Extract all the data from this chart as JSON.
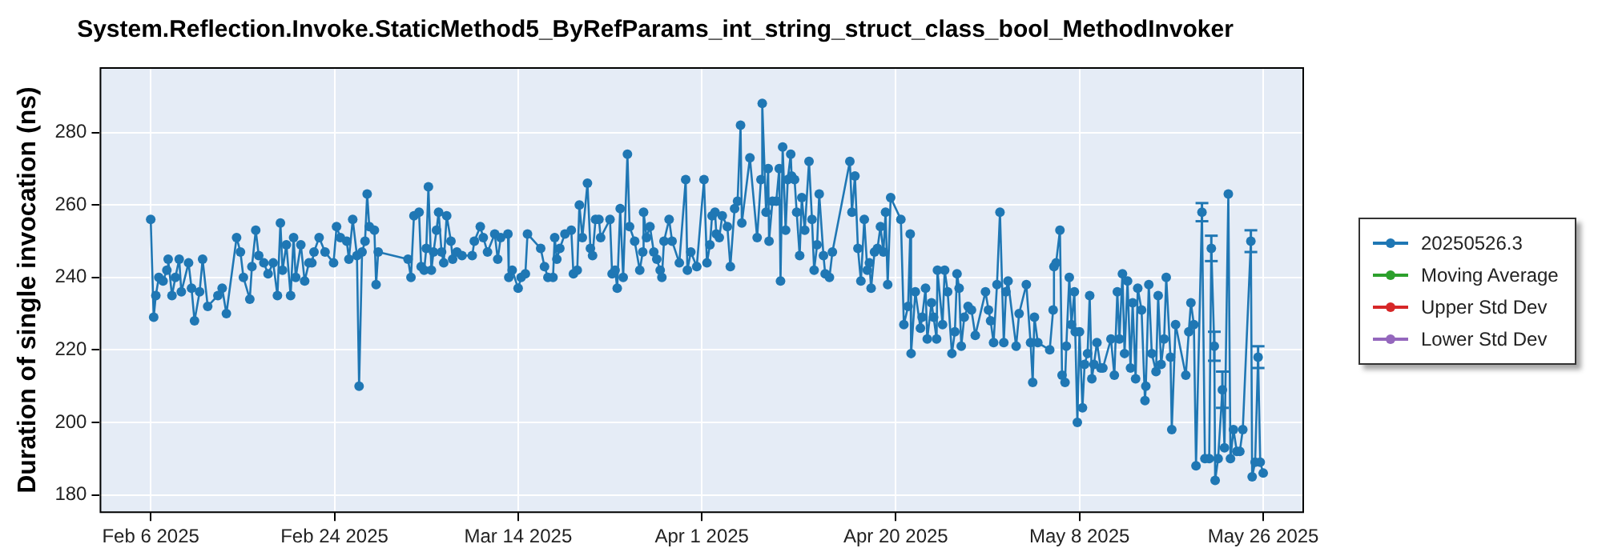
{
  "chart_data": {
    "type": "line",
    "title": "System.Reflection.Invoke.StaticMethod5_ByRefParams_int_string_struct_class_bool_MethodInvoker",
    "ylabel": "Duration of single invocation (ns)",
    "x": [
      "2025-02-06T00:00",
      "2025-02-06T07:00",
      "2025-02-06T12:00",
      "2025-02-06T19:00",
      "2025-02-07T05:00",
      "2025-02-07T14:00",
      "2025-02-07T17:00",
      "2025-02-08T02:00",
      "2025-02-08T10:00",
      "2025-02-08T19:00",
      "2025-02-09T00:00",
      "2025-02-09T17:00",
      "2025-02-10T00:00",
      "2025-02-10T07:00",
      "2025-02-10T19:00",
      "2025-02-11T02:00",
      "2025-02-11T14:00",
      "2025-02-12T14:00",
      "2025-02-13T00:00",
      "2025-02-13T10:00",
      "2025-02-14T10:00",
      "2025-02-14T19:00",
      "2025-02-15T02:00",
      "2025-02-15T17:00",
      "2025-02-15T22:00",
      "2025-02-16T07:00",
      "2025-02-16T14:00",
      "2025-02-17T02:00",
      "2025-02-17T12:00",
      "2025-02-18T00:00",
      "2025-02-18T10:00",
      "2025-02-18T17:00",
      "2025-02-18T22:00",
      "2025-02-19T07:00",
      "2025-02-19T17:00",
      "2025-02-20T00:00",
      "2025-02-20T05:00",
      "2025-02-20T17:00",
      "2025-02-21T02:00",
      "2025-02-21T12:00",
      "2025-02-21T19:00",
      "2025-02-22T00:00",
      "2025-02-22T12:00",
      "2025-02-23T02:00",
      "2025-02-23T22:00",
      "2025-02-24T05:00",
      "2025-02-24T14:00",
      "2025-02-25T05:00",
      "2025-02-25T10:00",
      "2025-02-25T19:00",
      "2025-02-26T05:00",
      "2025-02-26T10:00",
      "2025-02-26T17:00",
      "2025-02-27T00:00",
      "2025-02-27T05:00",
      "2025-02-27T10:00",
      "2025-02-27T22:00",
      "2025-02-28T02:00",
      "2025-02-28T07:00",
      "2025-03-03T05:00",
      "2025-03-03T12:00",
      "2025-03-03T19:00",
      "2025-03-04T07:00",
      "2025-03-04T12:00",
      "2025-03-04T19:00",
      "2025-03-05T00:00",
      "2025-03-05T05:00",
      "2025-03-05T12:00",
      "2025-03-05T17:00",
      "2025-03-06T00:00",
      "2025-03-06T05:00",
      "2025-03-06T12:00",
      "2025-03-06T17:00",
      "2025-03-07T00:00",
      "2025-03-07T10:00",
      "2025-03-07T14:00",
      "2025-03-08T00:00",
      "2025-03-08T12:00",
      "2025-03-09T12:00",
      "2025-03-09T17:00",
      "2025-03-10T07:00",
      "2025-03-10T14:00",
      "2025-03-11T00:00",
      "2025-03-11T17:00",
      "2025-03-12T00:00",
      "2025-03-12T07:00",
      "2025-03-13T00:00",
      "2025-03-13T02:00",
      "2025-03-13T10:00",
      "2025-03-14T00:00",
      "2025-03-14T07:00",
      "2025-03-14T17:00",
      "2025-03-14T22:00",
      "2025-03-16T05:00",
      "2025-03-16T14:00",
      "2025-03-16T22:00",
      "2025-03-17T10:00",
      "2025-03-17T14:00",
      "2025-03-17T19:00",
      "2025-03-18T02:00",
      "2025-03-18T14:00",
      "2025-03-19T05:00",
      "2025-03-19T10:00",
      "2025-03-19T19:00",
      "2025-03-20T00:00",
      "2025-03-20T07:00",
      "2025-03-20T19:00",
      "2025-03-21T02:00",
      "2025-03-21T07:00",
      "2025-03-21T14:00",
      "2025-03-21T22:00",
      "2025-03-22T02:00",
      "2025-03-23T00:00",
      "2025-03-23T05:00",
      "2025-03-23T12:00",
      "2025-03-23T17:00",
      "2025-03-24T00:00",
      "2025-03-24T07:00",
      "2025-03-24T17:00",
      "2025-03-24T22:00",
      "2025-03-25T10:00",
      "2025-03-25T22:00",
      "2025-03-26T05:00",
      "2025-03-26T07:00",
      "2025-03-26T14:00",
      "2025-03-26T22:00",
      "2025-03-27T07:00",
      "2025-03-27T14:00",
      "2025-03-27T22:00",
      "2025-03-28T02:00",
      "2025-03-28T07:00",
      "2025-03-28T19:00",
      "2025-03-29T02:00",
      "2025-03-29T19:00",
      "2025-03-30T10:00",
      "2025-03-30T14:00",
      "2025-03-30T22:00",
      "2025-03-31T12:00",
      "2025-04-01T05:00",
      "2025-04-01T12:00",
      "2025-04-01T19:00",
      "2025-04-02T00:00",
      "2025-04-02T07:00",
      "2025-04-02T10:00",
      "2025-04-02T17:00",
      "2025-04-03T00:00",
      "2025-04-03T12:00",
      "2025-04-03T19:00",
      "2025-04-04T05:00",
      "2025-04-04T12:00",
      "2025-04-04T19:00",
      "2025-04-04T22:00",
      "2025-04-05T17:00",
      "2025-04-06T10:00",
      "2025-04-06T19:00",
      "2025-04-06T22:00",
      "2025-04-07T07:00",
      "2025-04-07T12:00",
      "2025-04-07T14:00",
      "2025-04-07T22:00",
      "2025-04-08T07:00",
      "2025-04-08T14:00",
      "2025-04-08T17:00",
      "2025-04-08T22:00",
      "2025-04-09T05:00",
      "2025-04-09T10:00",
      "2025-04-09T17:00",
      "2025-04-09T19:00",
      "2025-04-10T02:00",
      "2025-04-10T07:00",
      "2025-04-10T14:00",
      "2025-04-10T19:00",
      "2025-04-11T02:00",
      "2025-04-11T12:00",
      "2025-04-11T19:00",
      "2025-04-12T00:00",
      "2025-04-12T07:00",
      "2025-04-12T12:00",
      "2025-04-12T22:00",
      "2025-04-13T02:00",
      "2025-04-13T12:00",
      "2025-04-13T19:00",
      "2025-04-15T12:00",
      "2025-04-15T17:00",
      "2025-04-16T00:00",
      "2025-04-16T07:00",
      "2025-04-16T14:00",
      "2025-04-16T22:00",
      "2025-04-17T05:00",
      "2025-04-17T10:00",
      "2025-04-17T14:00",
      "2025-04-17T22:00",
      "2025-04-18T05:00",
      "2025-04-18T12:00",
      "2025-04-18T19:00",
      "2025-04-19T00:00",
      "2025-04-19T05:00",
      "2025-04-19T12:00",
      "2025-04-20T12:00",
      "2025-04-20T19:00",
      "2025-04-21T05:00",
      "2025-04-21T10:00",
      "2025-04-21T12:00",
      "2025-04-21T22:00",
      "2025-04-22T10:00",
      "2025-04-22T14:00",
      "2025-04-22T22:00",
      "2025-04-23T02:00",
      "2025-04-23T12:00",
      "2025-04-23T17:00",
      "2025-04-24T00:00",
      "2025-04-24T02:00",
      "2025-04-24T14:00",
      "2025-04-24T19:00",
      "2025-04-25T02:00",
      "2025-04-25T12:00",
      "2025-04-25T19:00",
      "2025-04-26T00:00",
      "2025-04-26T05:00",
      "2025-04-26T10:00",
      "2025-04-26T17:00",
      "2025-04-27T02:00",
      "2025-04-27T10:00",
      "2025-04-27T19:00",
      "2025-04-28T19:00",
      "2025-04-29T02:00",
      "2025-04-29T07:00",
      "2025-04-29T14:00",
      "2025-04-29T22:00",
      "2025-04-30T05:00",
      "2025-04-30T14:00",
      "2025-04-30T19:00",
      "2025-05-01T00:00",
      "2025-05-01T19:00",
      "2025-05-02T02:00",
      "2025-05-02T19:00",
      "2025-05-03T05:00",
      "2025-05-03T10:00",
      "2025-05-03T14:00",
      "2025-05-03T22:00",
      "2025-05-05T02:00",
      "2025-05-05T10:00",
      "2025-05-05T12:00",
      "2025-05-05T17:00",
      "2025-05-06T02:00",
      "2025-05-06T07:00",
      "2025-05-06T14:00",
      "2025-05-06T17:00",
      "2025-05-07T00:00",
      "2025-05-07T05:00",
      "2025-05-07T12:00",
      "2025-05-07T14:00",
      "2025-05-07T19:00",
      "2025-05-08T00:00",
      "2025-05-08T07:00",
      "2025-05-08T12:00",
      "2025-05-08T19:00",
      "2025-05-09T00:00",
      "2025-05-09T05:00",
      "2025-05-09T10:00",
      "2025-05-09T17:00",
      "2025-05-10T02:00",
      "2025-05-10T07:00",
      "2025-05-11T02:00",
      "2025-05-11T10:00",
      "2025-05-11T17:00",
      "2025-05-11T22:00",
      "2025-05-12T05:00",
      "2025-05-12T10:00",
      "2025-05-12T17:00",
      "2025-05-13T00:00",
      "2025-05-13T05:00",
      "2025-05-13T12:00",
      "2025-05-13T17:00",
      "2025-05-14T02:00",
      "2025-05-14T10:00",
      "2025-05-14T12:00",
      "2025-05-14T19:00",
      "2025-05-15T02:00",
      "2025-05-15T12:00",
      "2025-05-15T17:00",
      "2025-05-16T00:00",
      "2025-05-16T07:00",
      "2025-05-16T12:00",
      "2025-05-16T22:00",
      "2025-05-17T01:00",
      "2025-05-17T10:00",
      "2025-05-18T10:00",
      "2025-05-18T17:00",
      "2025-05-18T22:00",
      "2025-05-19T05:00",
      "2025-05-19T10:00",
      "2025-05-20T00:00",
      "2025-05-20T07:00",
      "2025-05-20T17:00",
      "2025-05-20T22:00",
      "2025-05-21T05:00",
      "2025-05-21T07:00",
      "2025-05-21T14:00",
      "2025-05-22T00:00",
      "2025-05-22T05:00",
      "2025-05-22T14:00",
      "2025-05-22T19:00",
      "2025-05-23T02:00",
      "2025-05-23T10:00",
      "2025-05-23T17:00",
      "2025-05-24T00:00",
      "2025-05-24T19:00",
      "2025-05-24T22:00",
      "2025-05-25T05:00",
      "2025-05-25T12:00",
      "2025-05-25T17:00",
      "2025-05-26T00:00"
    ],
    "series": [
      {
        "name": "20250526.3",
        "color": "#1f77b4",
        "values": [
          256,
          229,
          235,
          240,
          239,
          242,
          245,
          235,
          240,
          245,
          236,
          244,
          237,
          228,
          236,
          245,
          232,
          235,
          237,
          230,
          251,
          247,
          240,
          234,
          243,
          253,
          246,
          244,
          241,
          244,
          235,
          255,
          242,
          249,
          235,
          251,
          240,
          249,
          239,
          244,
          244,
          247,
          251,
          247,
          244,
          254,
          251,
          250,
          245,
          256,
          246,
          210,
          247,
          250,
          263,
          254,
          253,
          238,
          247,
          245,
          240,
          257,
          258,
          243,
          242,
          248,
          265,
          242,
          247,
          253,
          258,
          247,
          244,
          257,
          250,
          245,
          247,
          246,
          246,
          250,
          254,
          251,
          247,
          252,
          245,
          251,
          252,
          240,
          242,
          237,
          240,
          241,
          252,
          248,
          243,
          240,
          240,
          251,
          245,
          248,
          252,
          253,
          241,
          242,
          260,
          251,
          266,
          248,
          246,
          256,
          256,
          251,
          256,
          241,
          242,
          237,
          259,
          240,
          274,
          254,
          250,
          242,
          247,
          258,
          251,
          254,
          247,
          245,
          242,
          240,
          250,
          256,
          250,
          244,
          267,
          242,
          247,
          243,
          267,
          244,
          249,
          257,
          258,
          252,
          251,
          257,
          254,
          243,
          259,
          261,
          282,
          255,
          273,
          251,
          267,
          288,
          258,
          270,
          250,
          261,
          261,
          270,
          239,
          276,
          253,
          267,
          274,
          268,
          267,
          258,
          246,
          262,
          253,
          272,
          256,
          242,
          249,
          263,
          246,
          241,
          240,
          247,
          272,
          258,
          268,
          248,
          239,
          256,
          242,
          244,
          237,
          247,
          248,
          254,
          247,
          258,
          238,
          262,
          256,
          227,
          232,
          252,
          219,
          236,
          226,
          229,
          237,
          223,
          233,
          229,
          223,
          242,
          227,
          242,
          236,
          219,
          225,
          241,
          237,
          221,
          229,
          232,
          231,
          224,
          236,
          231,
          228,
          222,
          238,
          258,
          222,
          236,
          239,
          221,
          230,
          238,
          222,
          211,
          229,
          222,
          220,
          231,
          243,
          244,
          253,
          213,
          211,
          221,
          240,
          227,
          236,
          225,
          200,
          225,
          204,
          216,
          219,
          235,
          212,
          216,
          222,
          215,
          215,
          223,
          213,
          236,
          223,
          241,
          219,
          239,
          215,
          233,
          212,
          237,
          231,
          206,
          210,
          238,
          219,
          214,
          235,
          216,
          223,
          240,
          218,
          198,
          227,
          213,
          225,
          233,
          227,
          188,
          258,
          190,
          190,
          248,
          221,
          184,
          190,
          209,
          193,
          263,
          190,
          198,
          192,
          192,
          198,
          250,
          185,
          189,
          218,
          189,
          186
        ],
        "errors": [
          null,
          null,
          null,
          null,
          null,
          null,
          null,
          null,
          null,
          null,
          null,
          null,
          null,
          null,
          null,
          null,
          null,
          null,
          null,
          null,
          null,
          null,
          null,
          null,
          null,
          null,
          null,
          null,
          null,
          null,
          null,
          null,
          null,
          null,
          null,
          null,
          null,
          null,
          null,
          null,
          null,
          null,
          null,
          null,
          null,
          null,
          null,
          null,
          null,
          null,
          null,
          null,
          null,
          null,
          null,
          null,
          null,
          null,
          null,
          null,
          null,
          null,
          null,
          null,
          null,
          null,
          null,
          null,
          null,
          null,
          null,
          null,
          null,
          null,
          null,
          null,
          null,
          null,
          null,
          null,
          null,
          null,
          null,
          null,
          null,
          null,
          null,
          null,
          null,
          null,
          null,
          null,
          null,
          null,
          null,
          null,
          null,
          null,
          null,
          null,
          null,
          null,
          null,
          null,
          null,
          null,
          null,
          null,
          null,
          null,
          null,
          null,
          null,
          null,
          null,
          null,
          null,
          null,
          null,
          null,
          null,
          null,
          null,
          null,
          null,
          null,
          null,
          null,
          null,
          null,
          null,
          null,
          null,
          null,
          null,
          null,
          null,
          null,
          null,
          null,
          null,
          null,
          null,
          null,
          null,
          null,
          null,
          null,
          null,
          null,
          null,
          null,
          null,
          null,
          null,
          null,
          null,
          null,
          null,
          null,
          null,
          null,
          null,
          null,
          null,
          null,
          null,
          null,
          null,
          null,
          null,
          null,
          null,
          null,
          null,
          null,
          null,
          null,
          null,
          null,
          null,
          null,
          null,
          null,
          null,
          null,
          null,
          null,
          null,
          null,
          null,
          null,
          null,
          null,
          null,
          null,
          null,
          null,
          null,
          null,
          null,
          null,
          null,
          null,
          null,
          null,
          null,
          null,
          null,
          null,
          null,
          null,
          null,
          null,
          null,
          null,
          null,
          null,
          null,
          null,
          null,
          null,
          null,
          null,
          null,
          null,
          null,
          null,
          null,
          null,
          null,
          null,
          null,
          null,
          null,
          null,
          null,
          null,
          null,
          null,
          null,
          null,
          null,
          null,
          null,
          null,
          null,
          null,
          null,
          null,
          null,
          null,
          null,
          null,
          null,
          null,
          null,
          null,
          null,
          null,
          null,
          null,
          null,
          null,
          null,
          null,
          null,
          null,
          null,
          null,
          null,
          null,
          null,
          null,
          null,
          null,
          null,
          null,
          null,
          null,
          null,
          null,
          null,
          null,
          null,
          null,
          null,
          null,
          null,
          null,
          null,
          null,
          2.5,
          null,
          null,
          3.5,
          4,
          null,
          null,
          5,
          null,
          null,
          null,
          null,
          null,
          null,
          null,
          3,
          null,
          null,
          3,
          null,
          null
        ]
      },
      {
        "name": "Moving Average",
        "color": "#2ca02c",
        "values": [
          null,
          null,
          null,
          null,
          null,
          null,
          null,
          null,
          null,
          null,
          null,
          null,
          null,
          null,
          null,
          null,
          null,
          null,
          null,
          null,
          null,
          null,
          null,
          null,
          null,
          null,
          null,
          null,
          null,
          null,
          null,
          null,
          null,
          null,
          null,
          null,
          null,
          null,
          null,
          null,
          null,
          null,
          null,
          null,
          null,
          null,
          null,
          null,
          null,
          null,
          null,
          null,
          null,
          null,
          null,
          null,
          null,
          null,
          null,
          null,
          null,
          null,
          null,
          null,
          null,
          null,
          null,
          null,
          null,
          null,
          null,
          null,
          null,
          null,
          null,
          null,
          null,
          null,
          null,
          null,
          null,
          null,
          null,
          null,
          null,
          null,
          null,
          null,
          null,
          null,
          null,
          null,
          null,
          null,
          null,
          null,
          null,
          null,
          null,
          null,
          null,
          null,
          null,
          null,
          null,
          null,
          null,
          null,
          null,
          null,
          null,
          null,
          null,
          null,
          null,
          null,
          null,
          null,
          null,
          null,
          null,
          null,
          null,
          null,
          null,
          null,
          null,
          null,
          null,
          null,
          null,
          null,
          null,
          null,
          null,
          null,
          null,
          null,
          null,
          null,
          null,
          null,
          null,
          null,
          null,
          null,
          null,
          null,
          null,
          null,
          null,
          null,
          null,
          null,
          null,
          null,
          null,
          null,
          null,
          null,
          null,
          null,
          null,
          null,
          null,
          null,
          null,
          null,
          null,
          null,
          null,
          null,
          null,
          null,
          null,
          null,
          null,
          null,
          null,
          null,
          null,
          null,
          null,
          null,
          null,
          null,
          null,
          null,
          null,
          null,
          null,
          null,
          null,
          null,
          null,
          null,
          null,
          null,
          null,
          null,
          null,
          null,
          null,
          null,
          null,
          null,
          null,
          null,
          null,
          null,
          null,
          null,
          null,
          null,
          null,
          null,
          null,
          null,
          null,
          null,
          null,
          null,
          null,
          null,
          null,
          null,
          null,
          null,
          null,
          null,
          null,
          null,
          null,
          null,
          null,
          null,
          null,
          null,
          null,
          null,
          null,
          null,
          null,
          null,
          null,
          null,
          null,
          null,
          null,
          null,
          null,
          null,
          null,
          null,
          null,
          null,
          null,
          null,
          null,
          null,
          null,
          null,
          null,
          null,
          null,
          null,
          null,
          null,
          null,
          null,
          null,
          null,
          null,
          null,
          null,
          null,
          null,
          null,
          null,
          null,
          null,
          null,
          null,
          null,
          null,
          null,
          null,
          null,
          null,
          null,
          null,
          null,
          null,
          null,
          null,
          null,
          null,
          null,
          null,
          null,
          null,
          null,
          null,
          null,
          null,
          null,
          null,
          null,
          null,
          null,
          null,
          null,
          null
        ]
      },
      {
        "name": "Upper Std Dev",
        "color": "#d62728",
        "values": [
          null,
          null,
          null,
          null,
          null,
          null,
          null,
          null,
          null,
          null,
          null,
          null,
          null,
          null,
          null,
          null,
          null,
          null,
          null,
          null,
          null,
          null,
          null,
          null,
          null,
          null,
          null,
          null,
          null,
          null,
          null,
          null,
          null,
          null,
          null,
          null,
          null,
          null,
          null,
          null,
          null,
          null,
          null,
          null,
          null,
          null,
          null,
          null,
          null,
          null,
          null,
          null,
          null,
          null,
          null,
          null,
          null,
          null,
          null,
          null,
          null,
          null,
          null,
          null,
          null,
          null,
          null,
          null,
          null,
          null,
          null,
          null,
          null,
          null,
          null,
          null,
          null,
          null,
          null,
          null,
          null,
          null,
          null,
          null,
          null,
          null,
          null,
          null,
          null,
          null,
          null,
          null,
          null,
          null,
          null,
          null,
          null,
          null,
          null,
          null,
          null,
          null,
          null,
          null,
          null,
          null,
          null,
          null,
          null,
          null,
          null,
          null,
          null,
          null,
          null,
          null,
          null,
          null,
          null,
          null,
          null,
          null,
          null,
          null,
          null,
          null,
          null,
          null,
          null,
          null,
          null,
          null,
          null,
          null,
          null,
          null,
          null,
          null,
          null,
          null,
          null,
          null,
          null,
          null,
          null,
          null,
          null,
          null,
          null,
          null,
          null,
          null,
          null,
          null,
          null,
          null,
          null,
          null,
          null,
          null,
          null,
          null,
          null,
          null,
          null,
          null,
          null,
          null,
          null,
          null,
          null,
          null,
          null,
          null,
          null,
          null,
          null,
          null,
          null,
          null,
          null,
          null,
          null,
          null,
          null,
          null,
          null,
          null,
          null,
          null,
          null,
          null,
          null,
          null,
          null,
          null,
          null,
          null,
          null,
          null,
          null,
          null,
          null,
          null,
          null,
          null,
          null,
          null,
          null,
          null,
          null,
          null,
          null,
          null,
          null,
          null,
          null,
          null,
          null,
          null,
          null,
          null,
          null,
          null,
          null,
          null,
          null,
          null,
          null,
          null,
          null,
          null,
          null,
          null,
          null,
          null,
          null,
          null,
          null,
          null,
          null,
          null,
          null,
          null,
          null,
          null,
          null,
          null,
          null,
          null,
          null,
          null,
          null,
          null,
          null,
          null,
          null,
          null,
          null,
          null,
          null,
          null,
          null,
          null,
          null,
          null,
          null,
          null,
          null,
          null,
          null,
          null,
          null,
          null,
          null,
          null,
          null,
          null,
          null,
          null,
          null,
          null,
          null,
          null,
          null,
          null,
          null,
          null,
          null,
          null,
          null,
          null,
          null,
          null,
          null,
          null,
          null,
          null,
          null,
          null,
          null,
          null,
          null,
          null,
          null,
          null,
          null,
          null,
          null,
          null,
          null,
          null,
          null
        ]
      },
      {
        "name": "Lower Std Dev",
        "color": "#9467bd",
        "values": [
          null,
          null,
          null,
          null,
          null,
          null,
          null,
          null,
          null,
          null,
          null,
          null,
          null,
          null,
          null,
          null,
          null,
          null,
          null,
          null,
          null,
          null,
          null,
          null,
          null,
          null,
          null,
          null,
          null,
          null,
          null,
          null,
          null,
          null,
          null,
          null,
          null,
          null,
          null,
          null,
          null,
          null,
          null,
          null,
          null,
          null,
          null,
          null,
          null,
          null,
          null,
          null,
          null,
          null,
          null,
          null,
          null,
          null,
          null,
          null,
          null,
          null,
          null,
          null,
          null,
          null,
          null,
          null,
          null,
          null,
          null,
          null,
          null,
          null,
          null,
          null,
          null,
          null,
          null,
          null,
          null,
          null,
          null,
          null,
          null,
          null,
          null,
          null,
          null,
          null,
          null,
          null,
          null,
          null,
          null,
          null,
          null,
          null,
          null,
          null,
          null,
          null,
          null,
          null,
          null,
          null,
          null,
          null,
          null,
          null,
          null,
          null,
          null,
          null,
          null,
          null,
          null,
          null,
          null,
          null,
          null,
          null,
          null,
          null,
          null,
          null,
          null,
          null,
          null,
          null,
          null,
          null,
          null,
          null,
          null,
          null,
          null,
          null,
          null,
          null,
          null,
          null,
          null,
          null,
          null,
          null,
          null,
          null,
          null,
          null,
          null,
          null,
          null,
          null,
          null,
          null,
          null,
          null,
          null,
          null,
          null,
          null,
          null,
          null,
          null,
          null,
          null,
          null,
          null,
          null,
          null,
          null,
          null,
          null,
          null,
          null,
          null,
          null,
          null,
          null,
          null,
          null,
          null,
          null,
          null,
          null,
          null,
          null,
          null,
          null,
          null,
          null,
          null,
          null,
          null,
          null,
          null,
          null,
          null,
          null,
          null,
          null,
          null,
          null,
          null,
          null,
          null,
          null,
          null,
          null,
          null,
          null,
          null,
          null,
          null,
          null,
          null,
          null,
          null,
          null,
          null,
          null,
          null,
          null,
          null,
          null,
          null,
          null,
          null,
          null,
          null,
          null,
          null,
          null,
          null,
          null,
          null,
          null,
          null,
          null,
          null,
          null,
          null,
          null,
          null,
          null,
          null,
          null,
          null,
          null,
          null,
          null,
          null,
          null,
          null,
          null,
          null,
          null,
          null,
          null,
          null,
          null,
          null,
          null,
          null,
          null,
          null,
          null,
          null,
          null,
          null,
          null,
          null,
          null,
          null,
          null,
          null,
          null,
          null,
          null,
          null,
          null,
          null,
          null,
          null,
          null,
          null,
          null,
          null,
          null,
          null,
          null,
          null,
          null,
          null,
          null,
          null,
          null,
          null,
          null,
          null,
          null,
          null,
          null,
          null,
          null,
          null,
          null,
          null,
          null,
          null,
          null,
          null
        ]
      }
    ],
    "xlim": [
      "2025-02-01",
      "2025-05-30"
    ],
    "xticks": [
      {
        "value": "2025-02-06",
        "label": "Feb 6 2025"
      },
      {
        "value": "2025-02-24",
        "label": "Feb 24 2025"
      },
      {
        "value": "2025-03-14",
        "label": "Mar 14 2025"
      },
      {
        "value": "2025-04-01",
        "label": "Apr 1 2025"
      },
      {
        "value": "2025-04-20",
        "label": "Apr 20 2025"
      },
      {
        "value": "2025-05-08",
        "label": "May 8 2025"
      },
      {
        "value": "2025-05-26",
        "label": "May 26 2025"
      }
    ],
    "ylim": [
      175,
      298
    ],
    "yticks": [
      180,
      200,
      220,
      240,
      260,
      280
    ],
    "grid": true,
    "legend": "right",
    "marker": "circle",
    "line_style": "solid"
  }
}
